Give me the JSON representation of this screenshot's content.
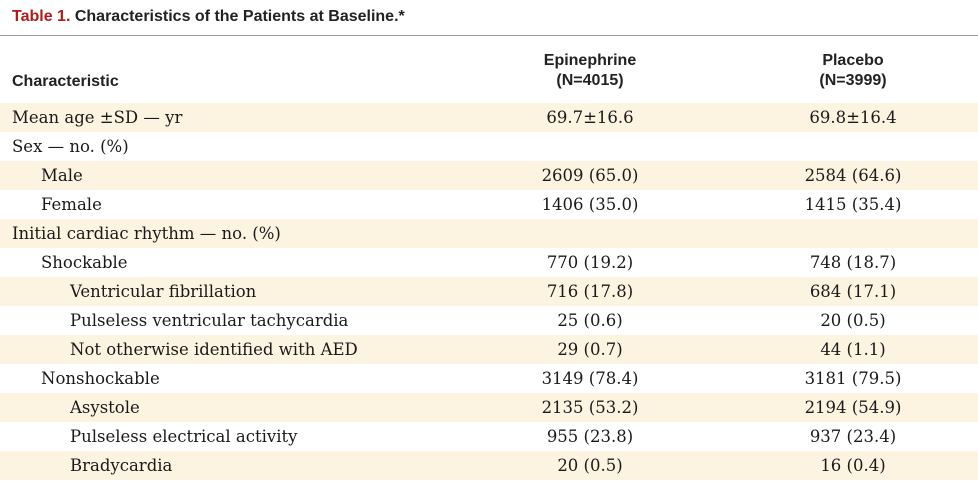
{
  "title": {
    "label": "Table 1.",
    "text": "Characteristics of the Patients at Baseline.*"
  },
  "header": {
    "characteristic": "Characteristic",
    "groups": [
      {
        "name": "Epinephrine",
        "n": "(N=4015)"
      },
      {
        "name": "Placebo",
        "n": "(N=3999)"
      }
    ]
  },
  "rows": [
    {
      "label": "Mean age ±SD — yr",
      "level": 0,
      "epi": "69.7±16.6",
      "pla": "69.8±16.4"
    },
    {
      "label": "Sex — no. (%)",
      "level": 0,
      "epi": "",
      "pla": ""
    },
    {
      "label": "Male",
      "level": 1,
      "epi": "2609 (65.0)",
      "pla": "2584 (64.6)"
    },
    {
      "label": "Female",
      "level": 1,
      "epi": "1406 (35.0)",
      "pla": "1415 (35.4)"
    },
    {
      "label": "Initial cardiac rhythm — no. (%)",
      "level": 0,
      "epi": "",
      "pla": ""
    },
    {
      "label": "Shockable",
      "level": 1,
      "epi": "770 (19.2)",
      "pla": "748 (18.7)"
    },
    {
      "label": "Ventricular fibrillation",
      "level": 2,
      "epi": "716 (17.8)",
      "pla": "684 (17.1)"
    },
    {
      "label": "Pulseless ventricular tachycardia",
      "level": 2,
      "epi": "25 (0.6)",
      "pla": "20 (0.5)"
    },
    {
      "label": "Not otherwise identified with AED",
      "level": 2,
      "epi": "29 (0.7)",
      "pla": "44 (1.1)"
    },
    {
      "label": "Nonshockable",
      "level": 1,
      "epi": "3149 (78.4)",
      "pla": "3181 (79.5)"
    },
    {
      "label": "Asystole",
      "level": 2,
      "epi": "2135 (53.2)",
      "pla": "2194 (54.9)"
    },
    {
      "label": "Pulseless electrical activity",
      "level": 2,
      "epi": "955 (23.8)",
      "pla": "937 (23.4)"
    },
    {
      "label": "Bradycardia",
      "level": 2,
      "epi": "20 (0.5)",
      "pla": "16 (0.4)"
    }
  ]
}
